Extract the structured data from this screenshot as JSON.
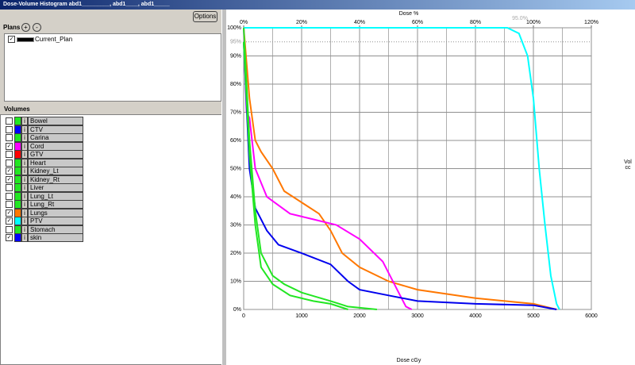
{
  "window": {
    "title": "Dose-Volume Histogram abd1_________, abd1____, abd1_____"
  },
  "options_button": "Options",
  "plans": {
    "label": "Plans",
    "add": "+",
    "remove": "-",
    "items": [
      {
        "name": "Current_Plan",
        "checked": true
      }
    ]
  },
  "volumes": {
    "label": "Volumes",
    "info": "i",
    "items": [
      {
        "name": "Bowel",
        "checked": false,
        "color": "#22e622"
      },
      {
        "name": "CTV",
        "checked": false,
        "color": "#0000ff"
      },
      {
        "name": "Carina",
        "checked": false,
        "color": "#22e622"
      },
      {
        "name": "Cord",
        "checked": true,
        "color": "#ff00ff"
      },
      {
        "name": "GTV",
        "checked": false,
        "color": "#ff0000"
      },
      {
        "name": "Heart",
        "checked": false,
        "color": "#22e622"
      },
      {
        "name": "Kidney_Lt",
        "checked": true,
        "color": "#22e622"
      },
      {
        "name": "Kidney_Rt",
        "checked": true,
        "color": "#22e622"
      },
      {
        "name": "Liver",
        "checked": false,
        "color": "#22e622"
      },
      {
        "name": "Lung_Lt",
        "checked": false,
        "color": "#22e622"
      },
      {
        "name": "Lung_Rt",
        "checked": false,
        "color": "#22e622"
      },
      {
        "name": "Lungs",
        "checked": true,
        "color": "#ff7700"
      },
      {
        "name": "PTV",
        "checked": true,
        "color": "#00ffff"
      },
      {
        "name": "Stomach",
        "checked": false,
        "color": "#22e622"
      },
      {
        "name": "skin",
        "checked": true,
        "color": "#0000ff"
      }
    ]
  },
  "chart_data": {
    "type": "line",
    "x_label": "Dose cGy",
    "x2_label": "Dose %",
    "y_label_right": [
      "Vol",
      "cc"
    ],
    "annotation": "95.0%",
    "xlim": [
      0,
      6000
    ],
    "xticks": [
      0,
      1000,
      2000,
      3000,
      4000,
      5000,
      6000
    ],
    "x2lim": [
      0,
      120
    ],
    "x2ticks": [
      {
        "value": 0,
        "label": "0%"
      },
      {
        "value": 20,
        "label": "20%"
      },
      {
        "value": 40,
        "label": "40%"
      },
      {
        "value": 60,
        "label": "60%"
      },
      {
        "value": 80,
        "label": "80%"
      },
      {
        "value": 100,
        "label": "100%"
      },
      {
        "value": 120,
        "label": "120%"
      }
    ],
    "ylim": [
      0,
      100
    ],
    "yticks": [
      {
        "value": 0,
        "label": "0%"
      },
      {
        "value": 10,
        "label": "10%"
      },
      {
        "value": 20,
        "label": "20%"
      },
      {
        "value": 30,
        "label": "30%"
      },
      {
        "value": 40,
        "label": "40%"
      },
      {
        "value": 50,
        "label": "50%"
      },
      {
        "value": 60,
        "label": "60%"
      },
      {
        "value": 70,
        "label": "70%"
      },
      {
        "value": 80,
        "label": "80%"
      },
      {
        "value": 90,
        "label": "90%"
      },
      {
        "value": 95,
        "label": "95%"
      },
      {
        "value": 100,
        "label": "100%"
      }
    ],
    "grid": true,
    "series": [
      {
        "name": "PTV",
        "color": "#00ffff",
        "x": [
          0,
          4550,
          4750,
          4900,
          5000,
          5100,
          5200,
          5300,
          5400,
          5450
        ],
        "values": [
          100,
          100,
          98,
          90,
          75,
          50,
          30,
          12,
          2,
          0
        ]
      },
      {
        "name": "Lungs",
        "color": "#ff7700",
        "x": [
          0,
          100,
          200,
          300,
          500,
          700,
          1000,
          1300,
          1500,
          1700,
          2000,
          2500,
          3000,
          4000,
          5000,
          5400
        ],
        "values": [
          100,
          75,
          60,
          56,
          50,
          42,
          38,
          34,
          28,
          20,
          15,
          10,
          7,
          4,
          2,
          0
        ]
      },
      {
        "name": "Cord",
        "color": "#ff00ff",
        "x": [
          0,
          50,
          100,
          200,
          400,
          600,
          800,
          1200,
          1600,
          2000,
          2400,
          2700,
          2800,
          2900
        ],
        "values": [
          100,
          70,
          68,
          50,
          40,
          37,
          34,
          32,
          30,
          25,
          17,
          5,
          1,
          0
        ]
      },
      {
        "name": "skin",
        "color": "#0000ee",
        "x": [
          0,
          100,
          200,
          400,
          600,
          1000,
          1500,
          1800,
          2000,
          2500,
          3000,
          4000,
          5000,
          5400
        ],
        "values": [
          95,
          50,
          36,
          28,
          23,
          20,
          16,
          10,
          7,
          5,
          3,
          2,
          1.5,
          0
        ]
      },
      {
        "name": "Kidney_Lt",
        "color": "#22e622",
        "x": [
          0,
          100,
          200,
          300,
          500,
          700,
          1000,
          1500,
          1800,
          2300
        ],
        "values": [
          100,
          60,
          35,
          20,
          12,
          9,
          6,
          3,
          1,
          0
        ]
      },
      {
        "name": "Kidney_Rt",
        "color": "#22e622",
        "x": [
          0,
          100,
          200,
          300,
          500,
          800,
          1200,
          1500,
          1800
        ],
        "values": [
          95,
          55,
          30,
          15,
          9,
          5,
          3,
          2,
          0
        ]
      }
    ]
  }
}
